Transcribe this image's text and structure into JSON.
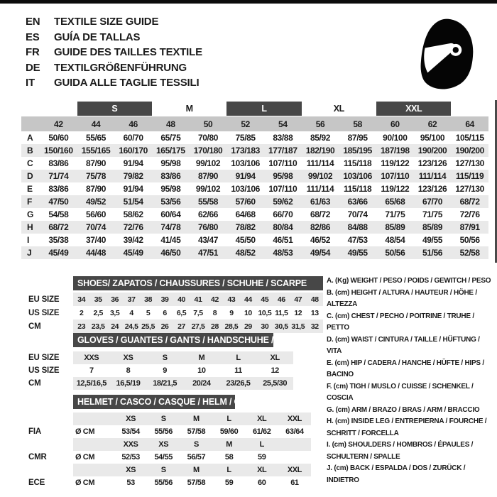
{
  "header": {
    "languages": [
      {
        "code": "EN",
        "title": "TEXTILE SIZE GUIDE"
      },
      {
        "code": "ES",
        "title": "GUÍA DE TALLAS"
      },
      {
        "code": "FR",
        "title": "GUIDE DES TAILLES TEXTILE"
      },
      {
        "code": "DE",
        "title": "TEXTILGRÖßENFÜHRUNG"
      },
      {
        "code": "IT",
        "title": "GUIDA ALLE TAGLIE TESSILI"
      }
    ],
    "logo": "racing-helmet"
  },
  "textile_table": {
    "groups": [
      {
        "label": "",
        "span": 1,
        "bar": false
      },
      {
        "label": "S",
        "span": 2,
        "bar": true
      },
      {
        "label": "M",
        "span": 2,
        "bar": false
      },
      {
        "label": "L",
        "span": 2,
        "bar": true
      },
      {
        "label": "XL",
        "span": 2,
        "bar": false
      },
      {
        "label": "XXL",
        "span": 2,
        "bar": true
      },
      {
        "label": "",
        "span": 1,
        "bar": false
      }
    ],
    "sizes": [
      "42",
      "44",
      "46",
      "48",
      "50",
      "52",
      "54",
      "56",
      "58",
      "60",
      "62",
      "64"
    ],
    "rows": [
      {
        "label": "A",
        "values": [
          "50/60",
          "55/65",
          "60/70",
          "65/75",
          "70/80",
          "75/85",
          "83/88",
          "85/92",
          "87/95",
          "90/100",
          "95/100",
          "105/115"
        ]
      },
      {
        "label": "B",
        "values": [
          "150/160",
          "155/165",
          "160/170",
          "165/175",
          "170/180",
          "173/183",
          "177/187",
          "182/190",
          "185/195",
          "187/198",
          "190/200",
          "190/200"
        ]
      },
      {
        "label": "C",
        "values": [
          "83/86",
          "87/90",
          "91/94",
          "95/98",
          "99/102",
          "103/106",
          "107/110",
          "111/114",
          "115/118",
          "119/122",
          "123/126",
          "127/130"
        ]
      },
      {
        "label": "D",
        "values": [
          "71/74",
          "75/78",
          "79/82",
          "83/86",
          "87/90",
          "91/94",
          "95/98",
          "99/102",
          "103/106",
          "107/110",
          "111/114",
          "115/119"
        ]
      },
      {
        "label": "E",
        "values": [
          "83/86",
          "87/90",
          "91/94",
          "95/98",
          "99/102",
          "103/106",
          "107/110",
          "111/114",
          "115/118",
          "119/122",
          "123/126",
          "127/130"
        ]
      },
      {
        "label": "F",
        "values": [
          "47/50",
          "49/52",
          "51/54",
          "53/56",
          "55/58",
          "57/60",
          "59/62",
          "61/63",
          "63/66",
          "65/68",
          "67/70",
          "68/72"
        ]
      },
      {
        "label": "G",
        "values": [
          "54/58",
          "56/60",
          "58/62",
          "60/64",
          "62/66",
          "64/68",
          "66/70",
          "68/72",
          "70/74",
          "71/75",
          "71/75",
          "72/76"
        ]
      },
      {
        "label": "H",
        "values": [
          "68/72",
          "70/74",
          "72/76",
          "74/78",
          "76/80",
          "78/82",
          "80/84",
          "82/86",
          "84/88",
          "85/89",
          "85/89",
          "87/91"
        ]
      },
      {
        "label": "I",
        "values": [
          "35/38",
          "37/40",
          "39/42",
          "41/45",
          "43/47",
          "45/50",
          "46/51",
          "46/52",
          "47/53",
          "48/54",
          "49/55",
          "50/56"
        ]
      },
      {
        "label": "J",
        "values": [
          "45/49",
          "44/48",
          "45/49",
          "46/50",
          "47/51",
          "48/52",
          "48/53",
          "49/54",
          "49/55",
          "50/56",
          "51/56",
          "52/58"
        ]
      }
    ]
  },
  "shoes_table": {
    "title": "SHOES/ ZAPATOS / CHAUSSURES / SCHUHE / SCARPE",
    "rows": [
      {
        "label": "EU SIZE",
        "striped": true,
        "values": [
          "34",
          "35",
          "36",
          "37",
          "38",
          "39",
          "40",
          "41",
          "42",
          "43",
          "44",
          "45",
          "46",
          "47",
          "48"
        ]
      },
      {
        "label": "US SIZE",
        "striped": false,
        "values": [
          "2",
          "2,5",
          "3,5",
          "4",
          "5",
          "6",
          "6,5",
          "7,5",
          "8",
          "9",
          "10",
          "10,5",
          "11,5",
          "12",
          "13"
        ]
      },
      {
        "label": "CM",
        "striped": true,
        "values": [
          "23",
          "23,5",
          "24",
          "24,5",
          "25,5",
          "26",
          "27",
          "27,5",
          "28",
          "28,5",
          "29",
          "30",
          "30,5",
          "31,5",
          "32"
        ]
      }
    ]
  },
  "gloves_table": {
    "title": "GLOVES / GUANTES / GANTS / HANDSCHUHE / GUANTI",
    "rows": [
      {
        "label": "EU SIZE",
        "striped": true,
        "values": [
          "XXS",
          "XS",
          "S",
          "M",
          "L",
          "XL"
        ]
      },
      {
        "label": "US SIZE",
        "striped": false,
        "values": [
          "7",
          "8",
          "9",
          "10",
          "11",
          "12"
        ]
      },
      {
        "label": "CM",
        "striped": true,
        "values": [
          "12,5/16,5",
          "16,5/19",
          "18/21,5",
          "20/24",
          "23/26,5",
          "25,5/30"
        ]
      }
    ]
  },
  "helmet_table": {
    "title": "HELMET / CASCO / CASQUE / HELM / CASCO",
    "groups": [
      {
        "label": "FIA",
        "unit": "Ø CM",
        "sizes": [
          "XS",
          "S",
          "M",
          "L",
          "XL",
          "XXL"
        ],
        "values": [
          "53/54",
          "55/56",
          "57/58",
          "59/60",
          "61/62",
          "63/64"
        ]
      },
      {
        "label": "CMR",
        "unit": "Ø CM",
        "sizes": [
          "XXS",
          "XS",
          "S",
          "M",
          "L"
        ],
        "values": [
          "52/53",
          "54/55",
          "56/57",
          "58",
          "59"
        ]
      },
      {
        "label": "ECE",
        "unit": "Ø CM",
        "sizes": [
          "XS",
          "S",
          "M",
          "L",
          "XL",
          "XXL"
        ],
        "values": [
          "53",
          "55/56",
          "57/58",
          "59",
          "60",
          "61"
        ]
      }
    ]
  },
  "legend": {
    "items": [
      "A. (Kg) WEIGHT / PESO / POIDS / GEWITCH / PESO",
      "B. (cm) HEIGHT / ALTURA / HAUTEUR / HÖHE / ALTEZZA",
      "C. (cm) CHEST / PECHO / POITRINE / TRUHE / PETTO",
      "D. (cm) WAIST / CINTURA / TAILLE / HÜFTUNG / VITA",
      "E. (cm) HIP / CADERA / HANCHE / HÜFTE / HIPS /  BACINO",
      "F. (cm) TIGH / MUSLO / CUISSE / SCHENKEL / COSCIA",
      "G. (cm) ARM  / BRAZO / BRAS / ARM / BRACCIO",
      "H. (cm) INSIDE LEG / ENTREPIERNA / FOURCHE / SCHRITT / FORCELLA",
      "I.  (cm) SHOULDERS / HOMBROS / ÉPAULES / SCHULTERN / SPALLE",
      "J. (cm) BACK / ESPALDA / DOS / ZURÜCK / INDIETRO"
    ]
  },
  "colors": {
    "bar_dark": "#474747",
    "band_gray": "#c6c6c6",
    "stripe_gray": "#e9e9e9",
    "text": "#1b1b1b"
  }
}
